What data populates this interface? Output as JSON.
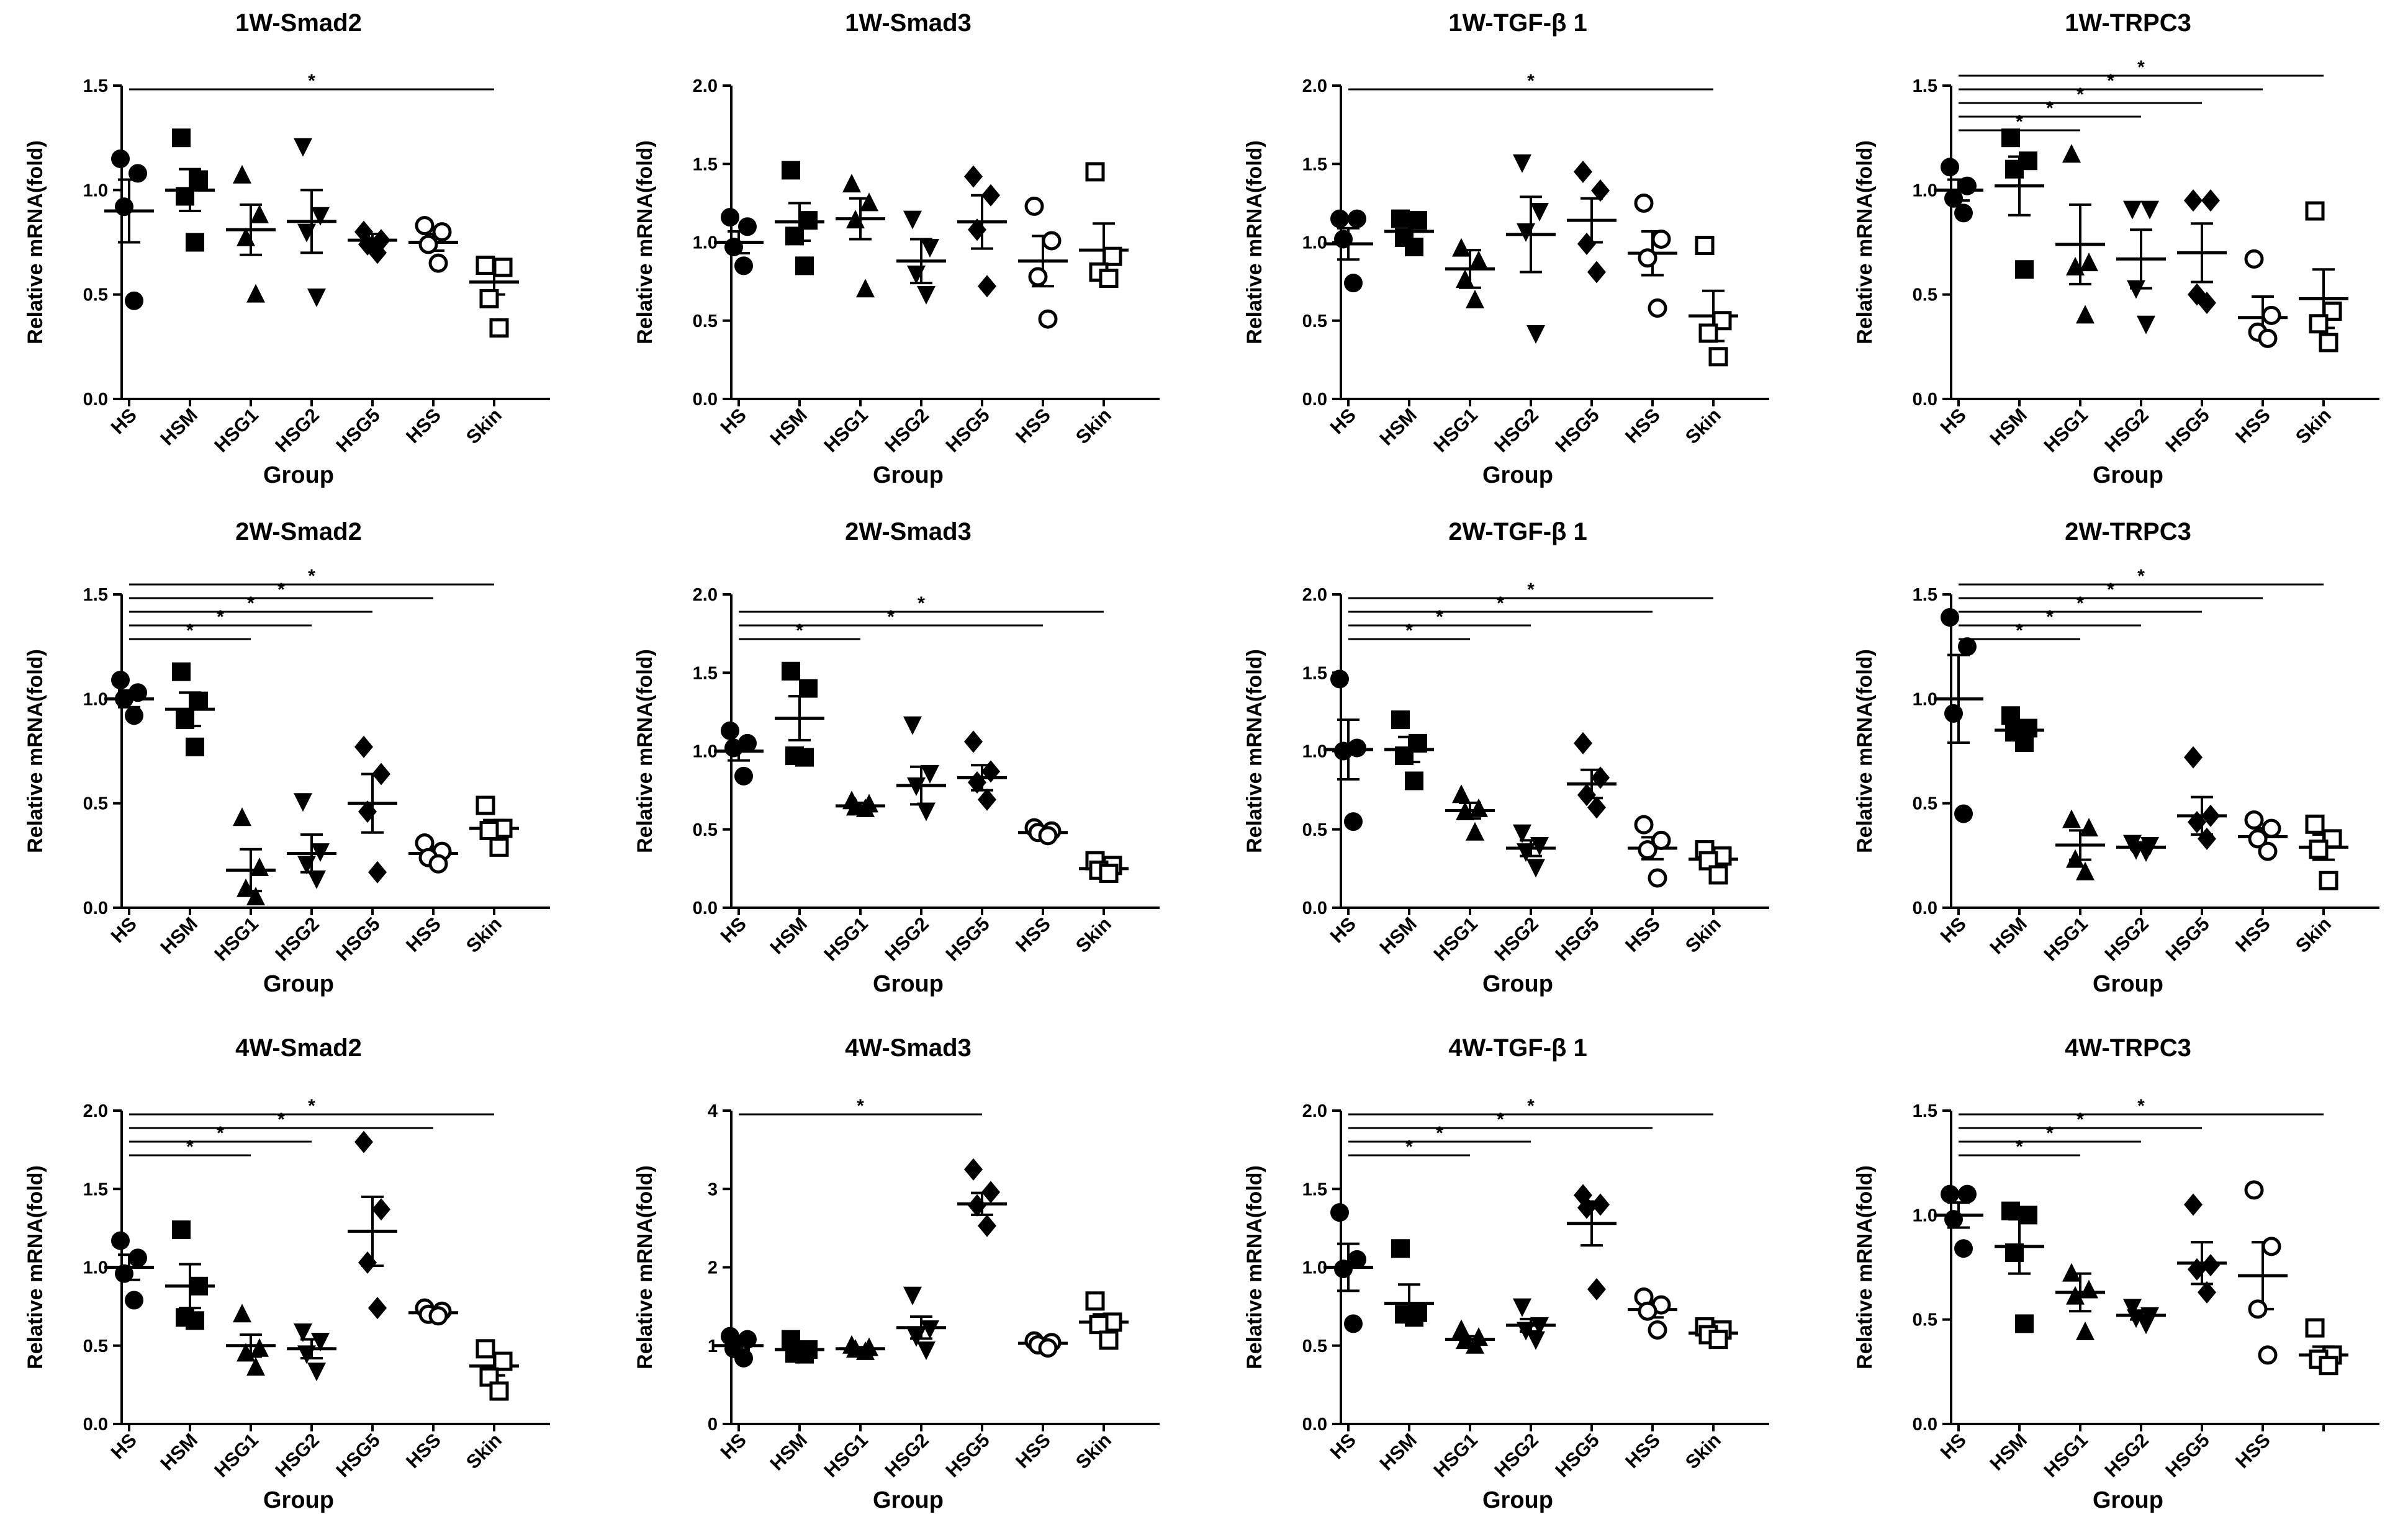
{
  "chart_data": [
    {
      "type": "scatter",
      "title": "1W-Smad2",
      "xlabel": "Group",
      "ylabel": "Relative mRNA(fold)",
      "ylim": [
        0,
        1.5
      ],
      "yticks": [
        0.0,
        0.5,
        1.0,
        1.5
      ],
      "tick_labels": [
        "0.0",
        "0.5",
        "1.0",
        "1.5"
      ],
      "categories": [
        "HS",
        "HSM",
        "HSG1",
        "HSG2",
        "HSG5",
        "HSS",
        "Skin"
      ],
      "points": [
        [
          1.15,
          1.08,
          0.92,
          0.47
        ],
        [
          1.25,
          1.05,
          0.97,
          0.75
        ],
        [
          1.07,
          0.88,
          0.77,
          0.5
        ],
        [
          1.21,
          0.88,
          0.8,
          0.49
        ],
        [
          0.8,
          0.76,
          0.74,
          0.7
        ],
        [
          0.83,
          0.8,
          0.74,
          0.65
        ],
        [
          0.64,
          0.63,
          0.48,
          0.34
        ]
      ],
      "mean": [
        0.9,
        1.0,
        0.81,
        0.85,
        0.76,
        0.75,
        0.56
      ],
      "sem": [
        0.15,
        0.1,
        0.12,
        0.15,
        0.03,
        0.04,
        0.06
      ],
      "sig": [
        {
          "from": 0,
          "to": 6,
          "label": "*"
        }
      ]
    },
    {
      "type": "scatter",
      "title": "1W-Smad3",
      "xlabel": "Group",
      "ylabel": "Relative mRNA(fold)",
      "ylim": [
        0,
        2.0
      ],
      "yticks": [
        0.0,
        0.5,
        1.0,
        1.5,
        2.0
      ],
      "tick_labels": [
        "0.0",
        "0.5",
        "1.0",
        "1.5",
        "2.0"
      ],
      "categories": [
        "HS",
        "HSM",
        "HSG1",
        "HSG2",
        "HSG5",
        "HSS",
        "Skin"
      ],
      "points": [
        [
          1.16,
          1.1,
          0.97,
          0.85
        ],
        [
          1.46,
          1.14,
          1.04,
          0.85
        ],
        [
          1.37,
          1.25,
          1.14,
          0.7
        ],
        [
          1.15,
          0.97,
          0.8,
          0.67
        ],
        [
          1.42,
          1.3,
          1.08,
          0.72
        ],
        [
          1.23,
          1.01,
          0.78,
          0.51
        ],
        [
          1.45,
          0.91,
          0.81,
          0.77
        ]
      ],
      "mean": [
        1.0,
        1.13,
        1.15,
        0.88,
        1.13,
        0.88,
        0.95
      ],
      "sem": [
        0.07,
        0.12,
        0.13,
        0.14,
        0.17,
        0.16,
        0.17
      ],
      "sig": []
    },
    {
      "type": "scatter",
      "title": "1W-TGF-β 1",
      "xlabel": "Group",
      "ylabel": "Relative mRNA(fold)",
      "ylim": [
        0,
        2.0
      ],
      "yticks": [
        0.0,
        0.5,
        1.0,
        1.5,
        2.0
      ],
      "tick_labels": [
        "0.0",
        "0.5",
        "1.0",
        "1.5",
        "2.0"
      ],
      "categories": [
        "HS",
        "HSM",
        "HSG1",
        "HSG2",
        "HSG5",
        "HSS",
        "Skin"
      ],
      "points": [
        [
          1.15,
          1.15,
          1.02,
          0.74
        ],
        [
          1.15,
          1.14,
          1.03,
          0.97
        ],
        [
          0.96,
          0.88,
          0.76,
          0.63
        ],
        [
          1.51,
          1.2,
          1.07,
          0.42
        ],
        [
          1.45,
          1.33,
          0.99,
          0.81
        ],
        [
          1.25,
          1.02,
          0.9,
          0.58
        ],
        [
          0.98,
          0.5,
          0.42,
          0.27
        ]
      ],
      "mean": [
        0.99,
        1.07,
        0.83,
        1.05,
        1.14,
        0.93,
        0.53
      ],
      "sem": [
        0.1,
        0.05,
        0.12,
        0.24,
        0.14,
        0.14,
        0.16
      ],
      "sig": [
        {
          "from": 0,
          "to": 6,
          "label": "*"
        }
      ]
    },
    {
      "type": "scatter",
      "title": "1W-TRPC3",
      "xlabel": "Group",
      "ylabel": "Relative mRNA(fold)",
      "ylim": [
        0,
        1.5
      ],
      "yticks": [
        0.0,
        0.5,
        1.0,
        1.5
      ],
      "tick_labels": [
        "0.0",
        "0.5",
        "1.0",
        "1.5"
      ],
      "categories": [
        "HS",
        "HSM",
        "HSG1",
        "HSG2",
        "HSG5",
        "HSS",
        "Skin"
      ],
      "points": [
        [
          1.11,
          1.02,
          0.96,
          0.89
        ],
        [
          1.25,
          1.14,
          1.1,
          0.62
        ],
        [
          1.17,
          0.65,
          0.63,
          0.4
        ],
        [
          0.91,
          0.91,
          0.53,
          0.36
        ],
        [
          0.95,
          0.95,
          0.5,
          0.46
        ],
        [
          0.67,
          0.4,
          0.32,
          0.29
        ],
        [
          0.9,
          0.42,
          0.36,
          0.27
        ]
      ],
      "mean": [
        1.0,
        1.02,
        0.74,
        0.67,
        0.7,
        0.39,
        0.48
      ],
      "sem": [
        0.05,
        0.14,
        0.19,
        0.14,
        0.14,
        0.1,
        0.14
      ],
      "sig": [
        {
          "from": 0,
          "to": 2,
          "label": "*"
        },
        {
          "from": 0,
          "to": 3,
          "label": "*"
        },
        {
          "from": 0,
          "to": 4,
          "label": "*"
        },
        {
          "from": 0,
          "to": 5,
          "label": "*"
        },
        {
          "from": 0,
          "to": 6,
          "label": "*"
        }
      ]
    },
    {
      "type": "scatter",
      "title": "2W-Smad2",
      "xlabel": "Group",
      "ylabel": "Relative mRNA(fold)",
      "ylim": [
        0,
        1.5
      ],
      "yticks": [
        0.0,
        0.5,
        1.0,
        1.5
      ],
      "tick_labels": [
        "0.0",
        "0.5",
        "1.0",
        "1.5"
      ],
      "categories": [
        "HS",
        "HSM",
        "HSG1",
        "HSG2",
        "HSG5",
        "HSS",
        "Skin"
      ],
      "points": [
        [
          1.09,
          1.03,
          1.0,
          0.92
        ],
        [
          1.13,
          0.99,
          0.9,
          0.77
        ],
        [
          0.43,
          0.19,
          0.09,
          0.05
        ],
        [
          0.51,
          0.27,
          0.21,
          0.14
        ],
        [
          0.77,
          0.64,
          0.46,
          0.17
        ],
        [
          0.31,
          0.27,
          0.24,
          0.21
        ],
        [
          0.49,
          0.38,
          0.37,
          0.29
        ]
      ],
      "mean": [
        1.0,
        0.95,
        0.18,
        0.26,
        0.5,
        0.26,
        0.38
      ],
      "sem": [
        0.04,
        0.08,
        0.1,
        0.09,
        0.14,
        0.03,
        0.04
      ],
      "sig": [
        {
          "from": 0,
          "to": 2,
          "label": "*"
        },
        {
          "from": 0,
          "to": 3,
          "label": "*"
        },
        {
          "from": 0,
          "to": 4,
          "label": "*"
        },
        {
          "from": 0,
          "to": 5,
          "label": "*"
        },
        {
          "from": 0,
          "to": 6,
          "label": "*"
        }
      ]
    },
    {
      "type": "scatter",
      "title": "2W-Smad3",
      "xlabel": "Group",
      "ylabel": "Relative mRNA(fold)",
      "ylim": [
        0,
        2.0
      ],
      "yticks": [
        0.0,
        0.5,
        1.0,
        1.5,
        2.0
      ],
      "tick_labels": [
        "0.0",
        "0.5",
        "1.0",
        "1.5",
        "2.0"
      ],
      "categories": [
        "HS",
        "HSM",
        "HSG1",
        "HSG2",
        "HSG5",
        "HSS",
        "Skin"
      ],
      "points": [
        [
          1.13,
          1.05,
          1.02,
          0.84
        ],
        [
          1.51,
          1.4,
          0.97,
          0.96
        ],
        [
          0.68,
          0.66,
          0.64,
          0.63
        ],
        [
          1.17,
          0.86,
          0.78,
          0.62
        ],
        [
          1.06,
          0.87,
          0.8,
          0.69
        ],
        [
          0.51,
          0.49,
          0.48,
          0.46
        ],
        [
          0.3,
          0.27,
          0.24,
          0.22
        ]
      ],
      "mean": [
        1.0,
        1.21,
        0.65,
        0.78,
        0.83,
        0.48,
        0.25
      ],
      "sem": [
        0.06,
        0.14,
        0.02,
        0.12,
        0.08,
        0.02,
        0.02
      ],
      "sig": [
        {
          "from": 0,
          "to": 2,
          "label": "*"
        },
        {
          "from": 0,
          "to": 5,
          "label": "*"
        },
        {
          "from": 0,
          "to": 6,
          "label": "*"
        }
      ]
    },
    {
      "type": "scatter",
      "title": "2W-TGF-β 1",
      "xlabel": "Group",
      "ylabel": "Relative mRNA(fold)",
      "ylim": [
        0,
        2.0
      ],
      "yticks": [
        0.0,
        0.5,
        1.0,
        1.5,
        2.0
      ],
      "tick_labels": [
        "0.0",
        "0.5",
        "1.0",
        "1.5",
        "2.0"
      ],
      "categories": [
        "HS",
        "HSM",
        "HSG1",
        "HSG2",
        "HSG5",
        "HSS",
        "Skin"
      ],
      "points": [
        [
          1.46,
          1.02,
          1.0,
          0.55
        ],
        [
          1.2,
          1.05,
          0.97,
          0.81
        ],
        [
          0.72,
          0.63,
          0.61,
          0.48
        ],
        [
          0.48,
          0.4,
          0.36,
          0.26
        ],
        [
          1.05,
          0.83,
          0.72,
          0.64
        ],
        [
          0.53,
          0.43,
          0.37,
          0.19
        ],
        [
          0.37,
          0.33,
          0.3,
          0.21
        ]
      ],
      "mean": [
        1.01,
        1.01,
        0.62,
        0.38,
        0.79,
        0.38,
        0.31
      ],
      "sem": [
        0.19,
        0.08,
        0.05,
        0.05,
        0.09,
        0.07,
        0.04
      ],
      "sig": [
        {
          "from": 0,
          "to": 2,
          "label": "*"
        },
        {
          "from": 0,
          "to": 3,
          "label": "*"
        },
        {
          "from": 0,
          "to": 5,
          "label": "*"
        },
        {
          "from": 0,
          "to": 6,
          "label": "*"
        }
      ]
    },
    {
      "type": "scatter",
      "title": "2W-TRPC3",
      "xlabel": "Group",
      "ylabel": "Relative mRNA(fold)",
      "ylim": [
        0,
        1.5
      ],
      "yticks": [
        0.0,
        0.5,
        1.0,
        1.5
      ],
      "tick_labels": [
        "0.0",
        "0.5",
        "1.0",
        "1.5"
      ],
      "categories": [
        "HS",
        "HSM",
        "HSG1",
        "HSG2",
        "HSG5",
        "HSS",
        "Skin"
      ],
      "points": [
        [
          1.39,
          1.25,
          0.93,
          0.45
        ],
        [
          0.92,
          0.86,
          0.84,
          0.79
        ],
        [
          0.42,
          0.38,
          0.23,
          0.17
        ],
        [
          0.31,
          0.3,
          0.28,
          0.27
        ],
        [
          0.72,
          0.44,
          0.41,
          0.33
        ],
        [
          0.42,
          0.38,
          0.33,
          0.27
        ],
        [
          0.4,
          0.33,
          0.28,
          0.13
        ]
      ],
      "mean": [
        1.0,
        0.85,
        0.3,
        0.29,
        0.44,
        0.34,
        0.29
      ],
      "sem": [
        0.21,
        0.03,
        0.07,
        0.01,
        0.09,
        0.04,
        0.06
      ],
      "sig": [
        {
          "from": 0,
          "to": 2,
          "label": "*"
        },
        {
          "from": 0,
          "to": 3,
          "label": "*"
        },
        {
          "from": 0,
          "to": 4,
          "label": "*"
        },
        {
          "from": 0,
          "to": 5,
          "label": "*"
        },
        {
          "from": 0,
          "to": 6,
          "label": "*"
        }
      ]
    },
    {
      "type": "scatter",
      "title": "4W-Smad2",
      "xlabel": "Group",
      "ylabel": "Relative mRNA(fold)",
      "ylim": [
        0,
        2.0
      ],
      "yticks": [
        0.0,
        0.5,
        1.0,
        1.5,
        2.0
      ],
      "tick_labels": [
        "0.0",
        "0.5",
        "1.0",
        "1.5",
        "2.0"
      ],
      "categories": [
        "HS",
        "HSM",
        "HSG1",
        "HSG2",
        "HSG5",
        "HSS",
        "Skin"
      ],
      "points": [
        [
          1.17,
          1.06,
          0.96,
          0.79
        ],
        [
          1.24,
          0.88,
          0.68,
          0.66
        ],
        [
          0.7,
          0.48,
          0.45,
          0.36
        ],
        [
          0.59,
          0.53,
          0.45,
          0.34
        ],
        [
          1.8,
          1.37,
          1.03,
          0.74
        ],
        [
          0.74,
          0.72,
          0.7,
          0.69
        ],
        [
          0.48,
          0.4,
          0.3,
          0.21
        ]
      ],
      "mean": [
        1.0,
        0.88,
        0.5,
        0.48,
        1.23,
        0.71,
        0.37
      ],
      "sem": [
        0.08,
        0.14,
        0.07,
        0.06,
        0.22,
        0.01,
        0.06
      ],
      "sig": [
        {
          "from": 0,
          "to": 2,
          "label": "*"
        },
        {
          "from": 0,
          "to": 3,
          "label": "*"
        },
        {
          "from": 0,
          "to": 5,
          "label": "*"
        },
        {
          "from": 0,
          "to": 6,
          "label": "*"
        }
      ]
    },
    {
      "type": "scatter",
      "title": "4W-Smad3",
      "xlabel": "Group",
      "ylabel": "Relative mRNA(fold)",
      "ylim": [
        0,
        4
      ],
      "yticks": [
        0,
        1,
        2,
        3,
        4
      ],
      "tick_labels": [
        "0",
        "1",
        "2",
        "3",
        "4"
      ],
      "categories": [
        "HS",
        "HSM",
        "HSG1",
        "HSG2",
        "HSG5",
        "HSS",
        "Skin"
      ],
      "points": [
        [
          1.12,
          1.08,
          0.96,
          0.84
        ],
        [
          1.08,
          0.95,
          0.9,
          0.89
        ],
        [
          1.0,
          0.97,
          0.95,
          0.92
        ],
        [
          1.65,
          1.22,
          1.12,
          0.95
        ],
        [
          3.25,
          2.96,
          2.79,
          2.53
        ],
        [
          1.06,
          1.04,
          1.01,
          0.97
        ],
        [
          1.57,
          1.3,
          1.27,
          1.07
        ]
      ],
      "mean": [
        1.0,
        0.95,
        0.96,
        1.23,
        2.81,
        1.03,
        1.3
      ],
      "sem": [
        0.05,
        0.04,
        0.02,
        0.14,
        0.14,
        0.02,
        0.1
      ],
      "sig": [
        {
          "from": 0,
          "to": 4,
          "label": "*"
        }
      ]
    },
    {
      "type": "scatter",
      "title": "4W-TGF-β 1",
      "xlabel": "Group",
      "ylabel": "Relative mRNA(fold)",
      "ylim": [
        0,
        2.0
      ],
      "yticks": [
        0.0,
        0.5,
        1.0,
        1.5,
        2.0
      ],
      "tick_labels": [
        "0.0",
        "0.5",
        "1.0",
        "1.5",
        "2.0"
      ],
      "categories": [
        "HS",
        "HSM",
        "HSG1",
        "HSG2",
        "HSG5",
        "HSS",
        "Skin"
      ],
      "points": [
        [
          1.35,
          1.05,
          0.99,
          0.64
        ],
        [
          1.12,
          0.71,
          0.7,
          0.68
        ],
        [
          0.6,
          0.55,
          0.53,
          0.5
        ],
        [
          0.75,
          0.63,
          0.6,
          0.54
        ],
        [
          1.46,
          1.4,
          1.38,
          0.86
        ],
        [
          0.81,
          0.76,
          0.72,
          0.6
        ],
        [
          0.62,
          0.6,
          0.57,
          0.54
        ]
      ],
      "mean": [
        1.0,
        0.77,
        0.54,
        0.63,
        1.28,
        0.73,
        0.58
      ],
      "sem": [
        0.15,
        0.12,
        0.02,
        0.04,
        0.14,
        0.05,
        0.02
      ],
      "sig": [
        {
          "from": 0,
          "to": 2,
          "label": "*"
        },
        {
          "from": 0,
          "to": 3,
          "label": "*"
        },
        {
          "from": 0,
          "to": 5,
          "label": "*"
        },
        {
          "from": 0,
          "to": 6,
          "label": "*"
        }
      ]
    },
    {
      "type": "scatter",
      "title": "4W-TRPC3",
      "xlabel": "Group",
      "ylabel": "Relative mRNA(fold)",
      "ylim": [
        0,
        1.5
      ],
      "yticks": [
        0.0,
        0.5,
        1.0,
        1.5
      ],
      "tick_labels": [
        "0.0",
        "0.5",
        "1.0",
        "1.5"
      ],
      "categories": [
        "HS",
        "HSM",
        "HSG1",
        "HSG2",
        "HSG5",
        "HSS",
        ""
      ],
      "points": [
        [
          1.1,
          1.1,
          0.98,
          0.84
        ],
        [
          1.02,
          1.0,
          0.82,
          0.48
        ],
        [
          0.72,
          0.64,
          0.61,
          0.44
        ],
        [
          0.56,
          0.52,
          0.51,
          0.48
        ],
        [
          1.05,
          0.76,
          0.74,
          0.63
        ],
        [
          1.12,
          0.85,
          0.55,
          0.33
        ],
        [
          0.46,
          0.33,
          0.31,
          0.28
        ]
      ],
      "mean": [
        1.0,
        0.85,
        0.63,
        0.52,
        0.77,
        0.71,
        0.33
      ],
      "sem": [
        0.06,
        0.13,
        0.09,
        0.02,
        0.1,
        0.16,
        0.04
      ],
      "sig": [
        {
          "from": 0,
          "to": 2,
          "label": "*"
        },
        {
          "from": 0,
          "to": 3,
          "label": "*"
        },
        {
          "from": 0,
          "to": 4,
          "label": "*"
        },
        {
          "from": 0,
          "to": 6,
          "label": "*"
        }
      ]
    }
  ],
  "markers": [
    "circle",
    "square",
    "triangle-up",
    "triangle-down",
    "diamond",
    "circle-open",
    "square-open"
  ],
  "colors": {
    "ink": "#000000",
    "background": "#ffffff"
  }
}
